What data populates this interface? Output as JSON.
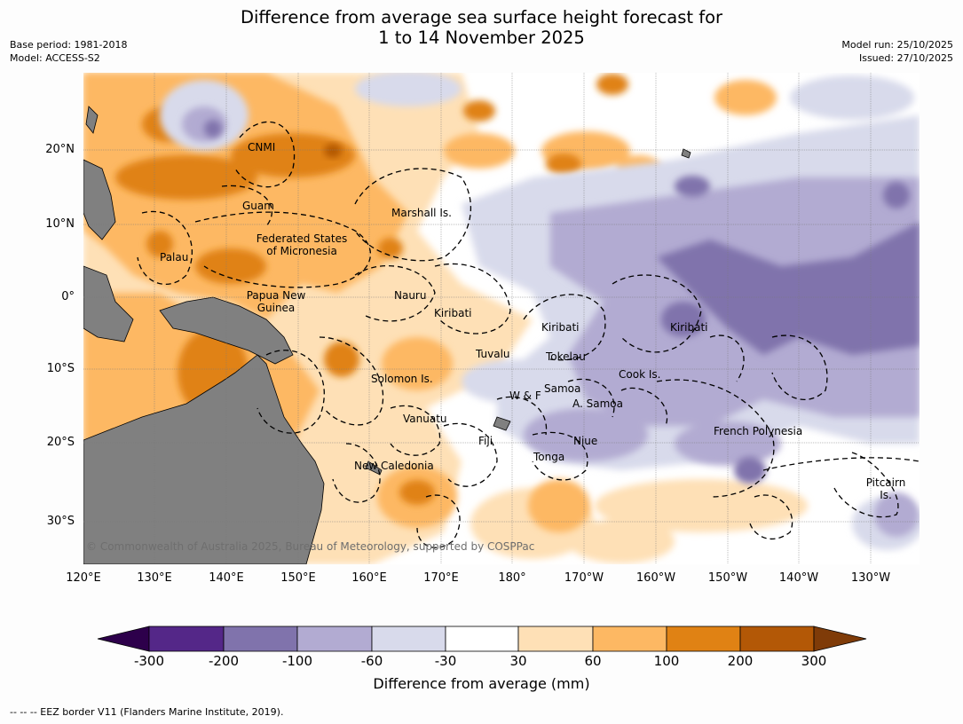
{
  "title": {
    "line1": "Difference from average sea surface height forecast for",
    "line2": "1 to 14 November 2025"
  },
  "meta": {
    "base_period": "Base period: 1981-2018",
    "model": "Model: ACCESS-S2",
    "model_run": "Model run: 25/10/2025",
    "issued": "Issued: 27/10/2025"
  },
  "map": {
    "lat_labels": [
      "20°N",
      "10°N",
      "0°",
      "10°S",
      "20°S",
      "30°S"
    ],
    "lon_labels": [
      "120°E",
      "130°E",
      "140°E",
      "150°E",
      "160°E",
      "170°E",
      "180°",
      "170°W",
      "160°W",
      "150°W",
      "140°W",
      "130°W"
    ],
    "places": {
      "cnmi": "CNMI",
      "guam": "Guam",
      "marshall": "Marshall Is.",
      "fsm_1": "Federated States",
      "fsm_2": "of Micronesia",
      "palau": "Palau",
      "nauru": "Nauru",
      "png_1": "Papua New",
      "png_2": "Guinea",
      "kiribati_w": "Kiribati",
      "kiribati_c": "Kiribati",
      "kiribati_e": "Kiribati",
      "tuvalu": "Tuvalu",
      "tokelau": "Tokelau",
      "cook": "Cook Is.",
      "solomon": "Solomon Is.",
      "samoa": "Samoa",
      "wf": "W & F",
      "asamoa": "A. Samoa",
      "vanuatu": "Vanuatu",
      "fiji": "Fiji",
      "niue": "Niue",
      "french_polynesia": "French Polynesia",
      "tonga": "Tonga",
      "new_caledonia": "New Caledonia",
      "pitcairn_1": "Pitcairn",
      "pitcairn_2": "Is."
    },
    "copyright": "© Commonwealth of Australia 2025, Bureau of Meteorology, supported by COSPPac",
    "land_color": "#808080"
  },
  "colorbar": {
    "ticks": [
      "-300",
      "-200",
      "-100",
      "-60",
      "-30",
      "30",
      "60",
      "100",
      "200",
      "300"
    ],
    "colors": [
      "#2d004b",
      "#542788",
      "#8073ac",
      "#b2abd2",
      "#d8daeb",
      "#ffffff",
      "#fee0b6",
      "#fdb863",
      "#e08214",
      "#b35806",
      "#7f3b08"
    ],
    "label": "Difference from average (mm)"
  },
  "footnote": "--  --  -- EEZ border V11 (Flanders Marine Institute, 2019)."
}
